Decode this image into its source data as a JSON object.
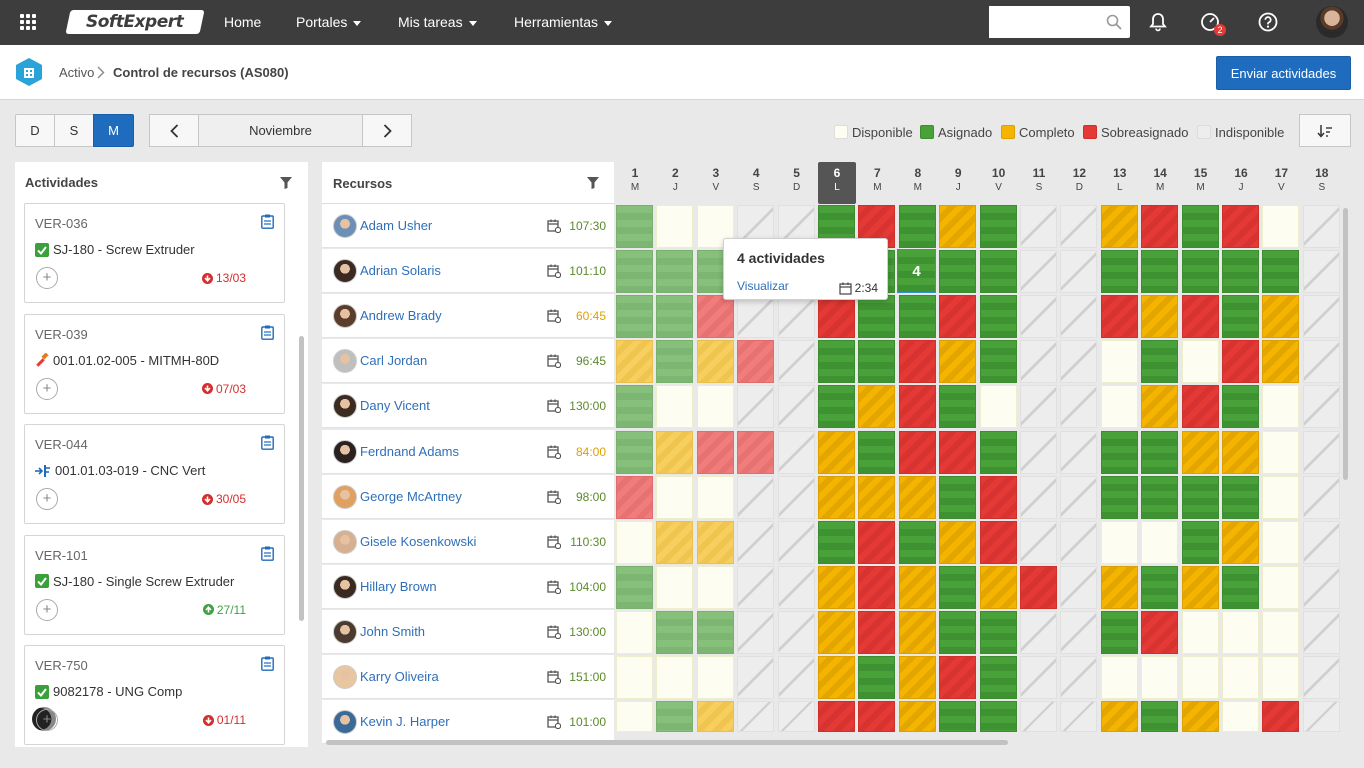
{
  "topbar": {
    "logo_text": "SoftExpert",
    "nav": [
      {
        "label": "Home",
        "dropdown": false
      },
      {
        "label": "Portales",
        "dropdown": true
      },
      {
        "label": "Mis tareas",
        "dropdown": true
      },
      {
        "label": "Herramientas",
        "dropdown": true
      }
    ],
    "search_placeholder": "",
    "notification_badge": "2",
    "icons": [
      "apps-grid-icon",
      "search-icon",
      "bell-icon",
      "gauge-icon",
      "help-icon",
      "user-avatar"
    ]
  },
  "breadcrumb": {
    "parent": "Activo",
    "current": "Control de recursos (AS080)"
  },
  "actions": {
    "send_label": "Enviar actividades"
  },
  "view_toggle": [
    {
      "label": "D",
      "active": false
    },
    {
      "label": "S",
      "active": false
    },
    {
      "label": "M",
      "active": true
    }
  ],
  "month": "Noviembre",
  "legend": [
    {
      "label": "Disponible",
      "color": "#fdfdf1"
    },
    {
      "label": "Asignado",
      "color": "#49a13a"
    },
    {
      "label": "Completo",
      "color": "#f4b400"
    },
    {
      "label": "Sobreasignado",
      "color": "#e53935"
    },
    {
      "label": "Indisponible",
      "color": "#ededed"
    }
  ],
  "activities": {
    "title": "Actividades",
    "items": [
      {
        "code": "VER-036",
        "name": "SJ-180 - Screw Extruder",
        "icon": "check-icon",
        "date": "13/03",
        "status": "late",
        "has_avatar": false
      },
      {
        "code": "VER-039",
        "name": "001.01.02-005 - MITMH-80D",
        "icon": "hammer-icon",
        "date": "07/03",
        "status": "late",
        "has_avatar": false
      },
      {
        "code": "VER-044",
        "name": "001.01.03-019 - CNC Vert",
        "icon": "machine-icon",
        "date": "30/05",
        "status": "late",
        "has_avatar": false
      },
      {
        "code": "VER-101",
        "name": "SJ-180 - Single Screw Extruder",
        "icon": "check-icon",
        "date": "27/11",
        "status": "ok",
        "has_avatar": false
      },
      {
        "code": "VER-750",
        "name": "9082178 - UNG Comp",
        "icon": "check-icon",
        "date": "01/11",
        "status": "late",
        "has_avatar": true
      }
    ]
  },
  "resources": {
    "title": "Recursos",
    "rows": [
      {
        "name": "Adam Usher",
        "hours": "107:30",
        "hours_color": "#5a8a2a"
      },
      {
        "name": "Adrian Solaris",
        "hours": "101:10",
        "hours_color": "#5a8a2a"
      },
      {
        "name": "Andrew Brady",
        "hours": "60:45",
        "hours_color": "#e0a000"
      },
      {
        "name": "Carl Jordan",
        "hours": "96:45",
        "hours_color": "#5a8a2a"
      },
      {
        "name": "Dany Vicent",
        "hours": "130:00",
        "hours_color": "#5a8a2a"
      },
      {
        "name": "Ferdnand Adams",
        "hours": "84:00",
        "hours_color": "#e0a000"
      },
      {
        "name": "George McArtney",
        "hours": "98:00",
        "hours_color": "#5a8a2a"
      },
      {
        "name": "Gisele Kosenkowski",
        "hours": "110:30",
        "hours_color": "#5a8a2a"
      },
      {
        "name": "Hillary Brown",
        "hours": "104:00",
        "hours_color": "#5a8a2a"
      },
      {
        "name": "John Smith",
        "hours": "130:00",
        "hours_color": "#5a8a2a"
      },
      {
        "name": "Karry Oliveira",
        "hours": "151:00",
        "hours_color": "#5a8a2a"
      },
      {
        "name": "Kevin J. Harper",
        "hours": "101:00",
        "hours_color": "#5a8a2a"
      }
    ]
  },
  "days": [
    {
      "n": "1",
      "d": "M"
    },
    {
      "n": "2",
      "d": "J"
    },
    {
      "n": "3",
      "d": "V"
    },
    {
      "n": "4",
      "d": "S"
    },
    {
      "n": "5",
      "d": "D"
    },
    {
      "n": "6",
      "d": "L",
      "today": true
    },
    {
      "n": "7",
      "d": "M"
    },
    {
      "n": "8",
      "d": "M"
    },
    {
      "n": "9",
      "d": "J"
    },
    {
      "n": "10",
      "d": "V"
    },
    {
      "n": "11",
      "d": "S"
    },
    {
      "n": "12",
      "d": "D"
    },
    {
      "n": "13",
      "d": "L"
    },
    {
      "n": "14",
      "d": "M"
    },
    {
      "n": "15",
      "d": "M"
    },
    {
      "n": "16",
      "d": "J"
    },
    {
      "n": "17",
      "d": "V"
    },
    {
      "n": "18",
      "d": "S"
    }
  ],
  "grid": [
    [
      "al",
      "d",
      "d",
      "i",
      "i",
      "a",
      "s",
      "a",
      "c",
      "a",
      "i",
      "i",
      "c",
      "s",
      "a",
      "s",
      "d",
      "i"
    ],
    [
      "al",
      "al",
      "al",
      "i",
      "i",
      "a",
      "a",
      "a",
      "a",
      "a",
      "i",
      "i",
      "a",
      "a",
      "a",
      "a",
      "a",
      "i"
    ],
    [
      "al",
      "al",
      "sl",
      "i",
      "i",
      "s",
      "a",
      "a",
      "s",
      "a",
      "i",
      "i",
      "s",
      "c",
      "s",
      "a",
      "c",
      "i"
    ],
    [
      "cl",
      "al",
      "cl",
      "sl",
      "i",
      "a",
      "a",
      "s",
      "c",
      "a",
      "i",
      "i",
      "d",
      "a",
      "d",
      "s",
      "c",
      "i"
    ],
    [
      "al",
      "d",
      "d",
      "i",
      "i",
      "a",
      "c",
      "s",
      "a",
      "d",
      "i",
      "i",
      "d",
      "c",
      "s",
      "a",
      "d",
      "i"
    ],
    [
      "al",
      "cl",
      "sl",
      "sl",
      "i",
      "c",
      "a",
      "s",
      "s",
      "a",
      "i",
      "i",
      "a",
      "a",
      "c",
      "c",
      "d",
      "i"
    ],
    [
      "sl",
      "d",
      "d",
      "i",
      "i",
      "c",
      "c",
      "c",
      "a",
      "s",
      "i",
      "i",
      "a",
      "a",
      "a",
      "a",
      "d",
      "i"
    ],
    [
      "d",
      "cl",
      "cl",
      "i",
      "i",
      "a",
      "s",
      "a",
      "c",
      "s",
      "i",
      "i",
      "d",
      "d",
      "a",
      "c",
      "d",
      "i"
    ],
    [
      "al",
      "d",
      "d",
      "i",
      "i",
      "c",
      "s",
      "c",
      "a",
      "c",
      "s",
      "i",
      "c",
      "a",
      "c",
      "a",
      "d",
      "i"
    ],
    [
      "d",
      "al",
      "al",
      "i",
      "i",
      "c",
      "s",
      "c",
      "a",
      "a",
      "i",
      "i",
      "a",
      "s",
      "d",
      "d",
      "d",
      "i"
    ],
    [
      "d",
      "d",
      "d",
      "i",
      "i",
      "c",
      "a",
      "c",
      "s",
      "a",
      "i",
      "i",
      "d",
      "d",
      "d",
      "d",
      "d",
      "i"
    ],
    [
      "d",
      "al",
      "cl",
      "i",
      "i",
      "s",
      "s",
      "c",
      "a",
      "a",
      "i",
      "i",
      "c",
      "a",
      "c",
      "d",
      "s",
      "i"
    ]
  ],
  "tooltip": {
    "title": "4 actividades",
    "link": "Visualizar",
    "time": "2:34",
    "selected_count": "4"
  }
}
